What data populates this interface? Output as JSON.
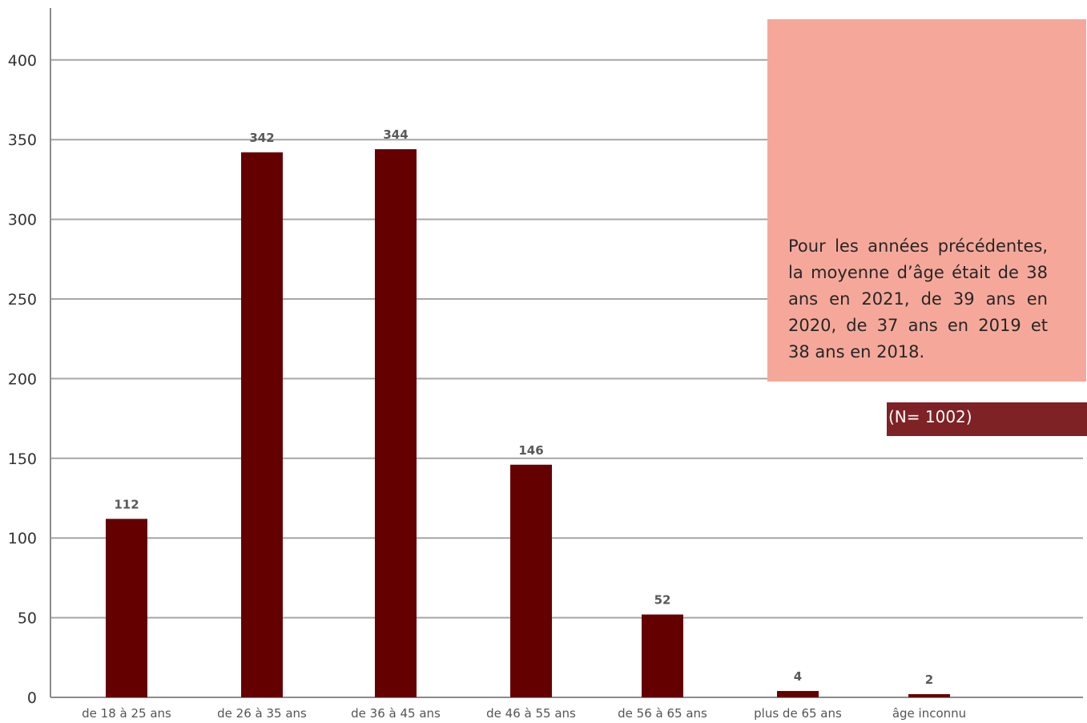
{
  "chart_data": {
    "type": "bar",
    "title": "",
    "xlabel": "",
    "ylabel": "",
    "categories": [
      "de 18 à 25 ans",
      "de 26 à 35 ans",
      "de 36 à 45 ans",
      "de 46 à 55 ans",
      "de 56 à 65 ans",
      "plus de 65 ans",
      "âge inconnu"
    ],
    "values": [
      112,
      342,
      344,
      146,
      52,
      4,
      2
    ],
    "data_labels": [
      "112",
      "342",
      "344",
      "146",
      "52",
      "4",
      "2"
    ],
    "ylim": [
      0,
      430
    ],
    "yticks": [
      0,
      50,
      100,
      150,
      200,
      250,
      300,
      350,
      400
    ],
    "grid": true,
    "bar_color": "#640000",
    "grid_color": "#a6a6a6"
  },
  "note": {
    "text": "Pour les années précédentes, la moyenne d’âge était de 38 ans en 2021, de 39 ans en 2020, de 37 ans en 2019 et 38 ans en 2018.",
    "background": "#f5a89a"
  },
  "sample_size": {
    "label": "(N= 1002)",
    "background": "#7e2225"
  }
}
